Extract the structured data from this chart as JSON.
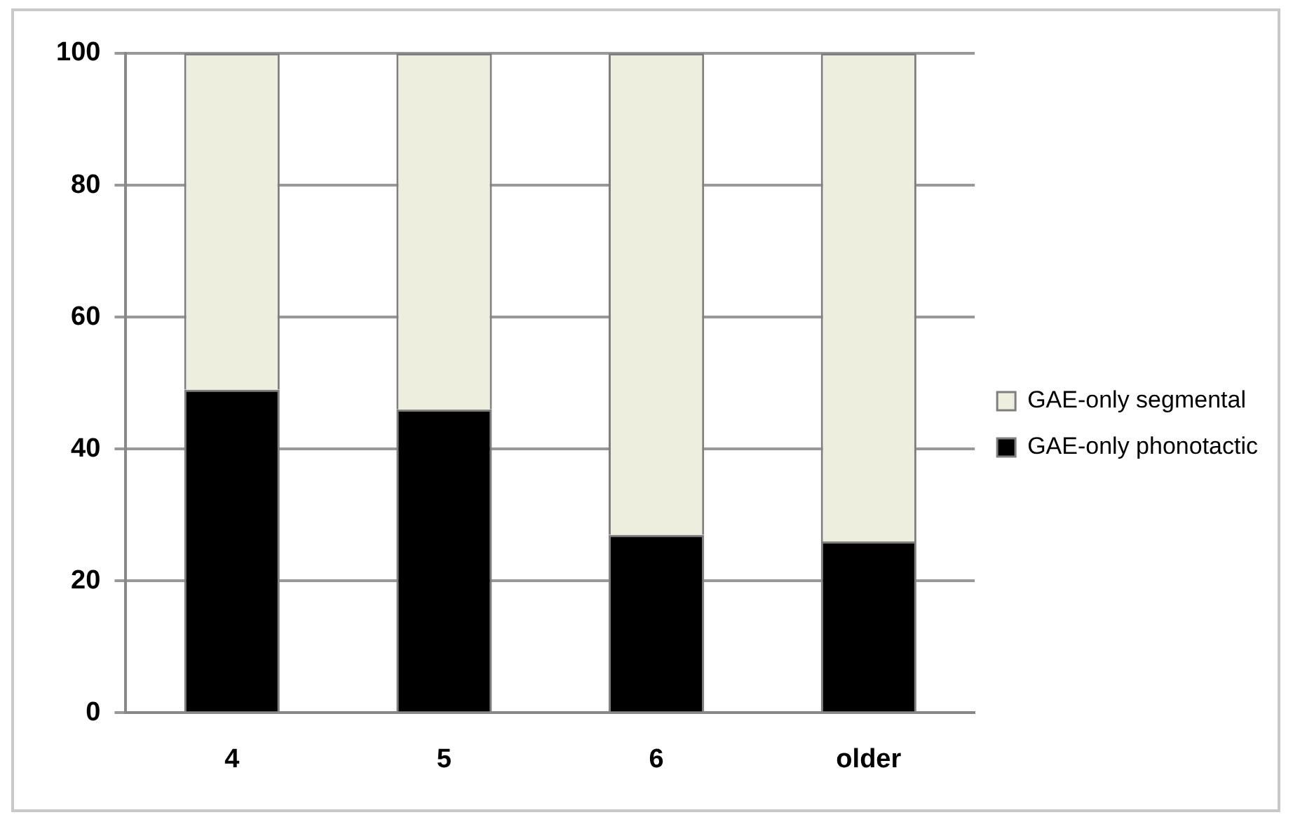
{
  "chart_data": {
    "type": "bar",
    "stacked": true,
    "categories": [
      "4",
      "5",
      "6",
      "older"
    ],
    "series": [
      {
        "name": "GAE-only phonotactic",
        "color": "#000000",
        "values": [
          49,
          46,
          27,
          26
        ]
      },
      {
        "name": "GAE-only segmental",
        "color": "#eeeedf",
        "values": [
          51,
          54,
          73,
          74
        ]
      }
    ],
    "ylim": [
      0,
      100
    ],
    "yticks": [
      0,
      20,
      40,
      60,
      80,
      100
    ],
    "grid": "y",
    "legend": "right"
  }
}
